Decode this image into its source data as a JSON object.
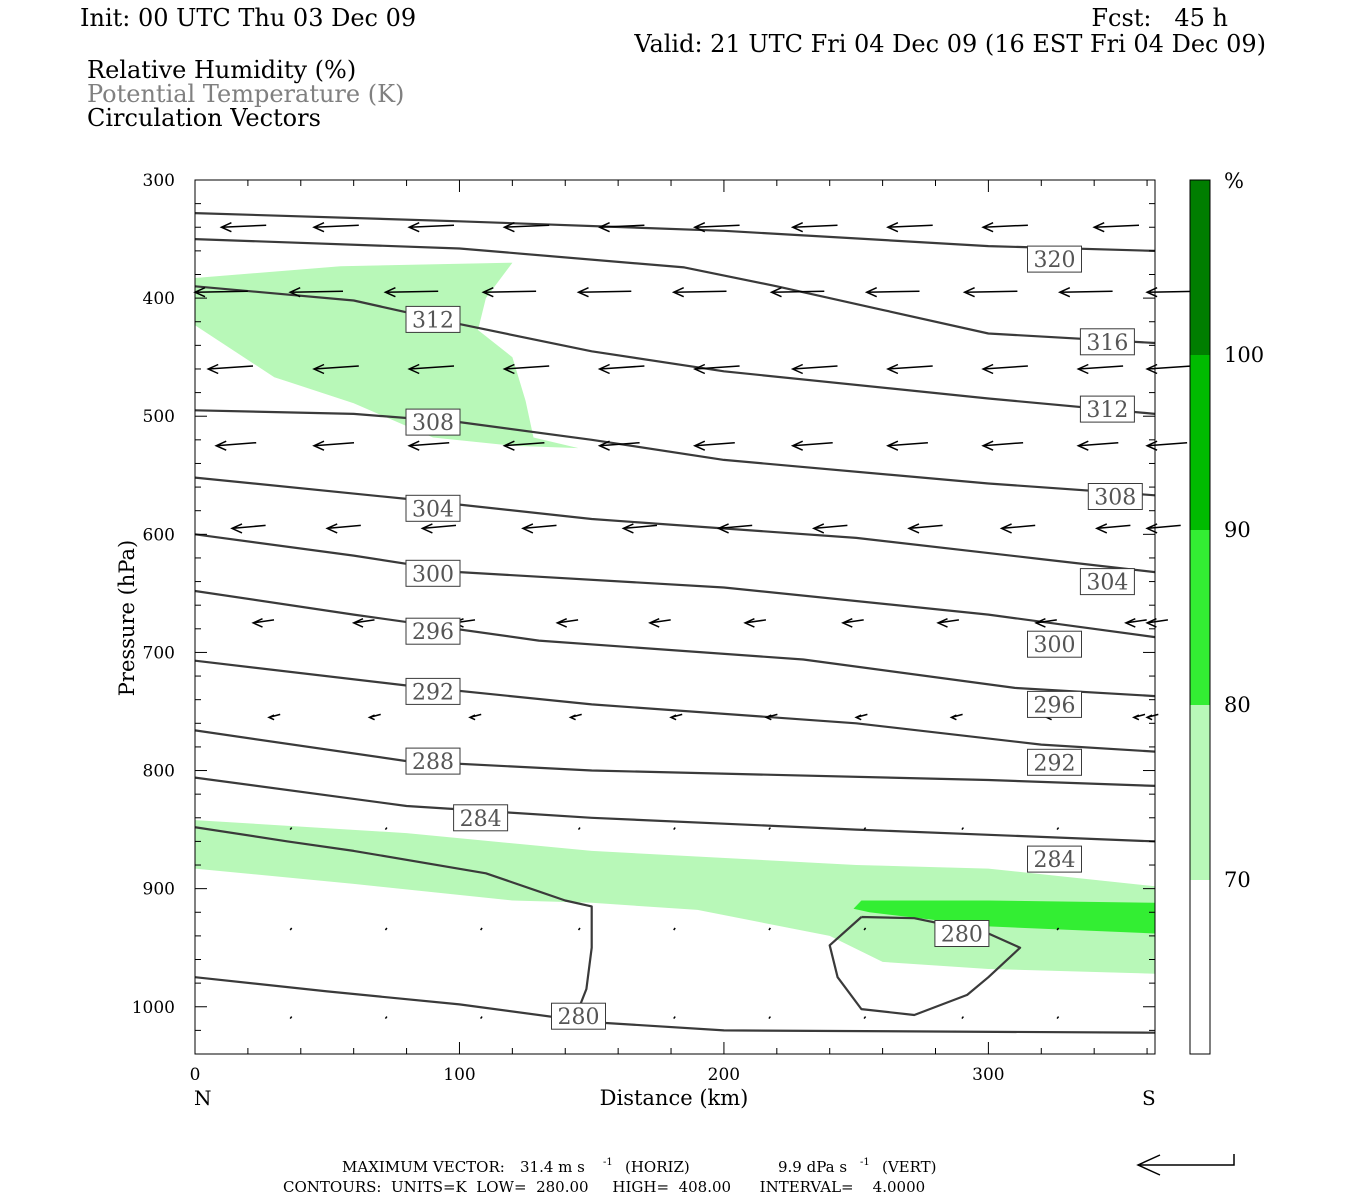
{
  "header": {
    "init": "Init: 00 UTC Thu 03 Dec 09",
    "fcst": "Fcst:   45 h",
    "valid": "Valid: 21 UTC Fri 04 Dec 09 (16 EST Fri 04 Dec 09)"
  },
  "legend": {
    "rh": "Relative Humidity (%)",
    "theta": "Potential Temperature (K)",
    "vectors": "Circulation Vectors"
  },
  "colors": {
    "theta_line": "#3a3a3a",
    "theta_label_text": "#555555",
    "rh_70_80": "#b8f8b8",
    "rh_80_90": "#33ee33",
    "rh_90_100": "#00bb00",
    "rh_100": "#007e00"
  },
  "footer": {
    "max_vector_label": "MAXIMUM VECTOR:",
    "max_vector_horiz": "31.4 m s",
    "horiz_tag": "(HORIZ)",
    "max_vector_vert": "9.9 dPa s",
    "vert_tag": "(VERT)",
    "exponent": "-1",
    "contours": "CONTOURS:  UNITS=K  LOW=  280.00     HIGH=  408.00      INTERVAL=    4.0000"
  },
  "chart_data": {
    "type": "cross-section",
    "xlabel": "Distance (km)",
    "ylabel": "Pressure (hPa)",
    "xlim": [
      0,
      363
    ],
    "ylim": [
      1040,
      300
    ],
    "x_ticks": [
      0,
      100,
      200,
      300
    ],
    "y_ticks": [
      300,
      400,
      500,
      600,
      700,
      800,
      900,
      1000
    ],
    "x_end_labels": {
      "left": "N",
      "right": "S"
    },
    "colorbar": {
      "unit": "%",
      "levels": [
        70,
        80,
        90,
        100
      ]
    },
    "theta_contours": [
      {
        "level": 320,
        "points": [
          [
            0,
            328
          ],
          [
            100,
            335
          ],
          [
            200,
            343
          ],
          [
            300,
            356
          ],
          [
            363,
            360
          ]
        ],
        "labels": [
          {
            "x": 325,
            "p": 367,
            "text": "320"
          }
        ]
      },
      {
        "level": 316,
        "points": [
          [
            0,
            350
          ],
          [
            100,
            358
          ],
          [
            185,
            374
          ],
          [
            220,
            390
          ],
          [
            260,
            410
          ],
          [
            300,
            430
          ],
          [
            363,
            438
          ]
        ],
        "labels": [
          {
            "x": 345,
            "p": 437,
            "text": "316"
          }
        ]
      },
      {
        "level": 312,
        "points": [
          [
            0,
            390
          ],
          [
            60,
            402
          ],
          [
            100,
            422
          ],
          [
            150,
            445
          ],
          [
            200,
            462
          ],
          [
            300,
            485
          ],
          [
            363,
            498
          ]
        ],
        "labels": [
          {
            "x": 90,
            "p": 418,
            "text": "312"
          },
          {
            "x": 345,
            "p": 494,
            "text": "312"
          }
        ]
      },
      {
        "level": 308,
        "points": [
          [
            0,
            495
          ],
          [
            60,
            498
          ],
          [
            100,
            505
          ],
          [
            150,
            520
          ],
          [
            200,
            537
          ],
          [
            300,
            557
          ],
          [
            363,
            567
          ]
        ],
        "labels": [
          {
            "x": 90,
            "p": 505,
            "text": "308"
          },
          {
            "x": 348,
            "p": 568,
            "text": "308"
          }
        ]
      },
      {
        "level": 304,
        "points": [
          [
            0,
            552
          ],
          [
            80,
            570
          ],
          [
            150,
            587
          ],
          [
            250,
            603
          ],
          [
            320,
            621
          ],
          [
            363,
            632
          ]
        ],
        "labels": [
          {
            "x": 90,
            "p": 578,
            "text": "304"
          },
          {
            "x": 345,
            "p": 640,
            "text": "304"
          }
        ]
      },
      {
        "level": 300,
        "points": [
          [
            0,
            600
          ],
          [
            60,
            618
          ],
          [
            100,
            632
          ],
          [
            200,
            645
          ],
          [
            300,
            668
          ],
          [
            363,
            687
          ]
        ],
        "labels": [
          {
            "x": 90,
            "p": 633,
            "text": "300"
          },
          {
            "x": 325,
            "p": 693,
            "text": "300"
          }
        ]
      },
      {
        "level": 296,
        "points": [
          [
            0,
            648
          ],
          [
            60,
            668
          ],
          [
            130,
            690
          ],
          [
            230,
            706
          ],
          [
            310,
            730
          ],
          [
            363,
            737
          ]
        ],
        "labels": [
          {
            "x": 90,
            "p": 682,
            "text": "296"
          },
          {
            "x": 325,
            "p": 744,
            "text": "296"
          }
        ]
      },
      {
        "level": 292,
        "points": [
          [
            0,
            707
          ],
          [
            80,
            728
          ],
          [
            150,
            744
          ],
          [
            250,
            760
          ],
          [
            320,
            778
          ],
          [
            363,
            784
          ]
        ],
        "labels": [
          {
            "x": 90,
            "p": 733,
            "text": "292"
          },
          {
            "x": 325,
            "p": 793,
            "text": "292"
          }
        ]
      },
      {
        "level": 288,
        "points": [
          [
            0,
            766
          ],
          [
            80,
            792
          ],
          [
            150,
            800
          ],
          [
            300,
            808
          ],
          [
            363,
            813
          ]
        ],
        "labels": [
          {
            "x": 90,
            "p": 792,
            "text": "288"
          }
        ]
      },
      {
        "level": 284,
        "points": [
          [
            0,
            806
          ],
          [
            80,
            830
          ],
          [
            150,
            840
          ],
          [
            250,
            850
          ],
          [
            363,
            860
          ]
        ],
        "labels": [
          {
            "x": 108,
            "p": 840,
            "text": "284"
          },
          {
            "x": 325,
            "p": 875,
            "text": "284"
          }
        ]
      },
      {
        "level": 280,
        "points": [
          [
            0,
            848
          ],
          [
            35,
            860
          ],
          [
            60,
            868
          ],
          [
            110,
            887
          ],
          [
            140,
            910
          ],
          [
            150,
            915
          ],
          [
            150,
            950
          ],
          [
            148,
            985
          ],
          [
            145,
            1002
          ]
        ],
        "labels": []
      },
      {
        "level": 280,
        "points": [
          [
            0,
            975
          ],
          [
            50,
            987
          ],
          [
            100,
            998
          ],
          [
            150,
            1013
          ],
          [
            200,
            1020
          ],
          [
            363,
            1022
          ]
        ],
        "labels": [
          {
            "x": 145,
            "p": 1008,
            "text": "280"
          }
        ]
      },
      {
        "level": 280,
        "points": [
          [
            252,
            924
          ],
          [
            272,
            925
          ],
          [
            300,
            938
          ],
          [
            312,
            950
          ],
          [
            300,
            975
          ],
          [
            292,
            990
          ],
          [
            272,
            1007
          ],
          [
            252,
            1002
          ],
          [
            243,
            975
          ],
          [
            240,
            948
          ],
          [
            252,
            924
          ]
        ],
        "labels": [
          {
            "x": 290,
            "p": 938,
            "text": "280"
          }
        ]
      }
    ],
    "rh_areas": [
      {
        "range": "70-80",
        "points": [
          [
            0,
            383
          ],
          [
            55,
            373
          ],
          [
            120,
            370
          ],
          [
            110,
            400
          ],
          [
            107,
            427
          ],
          [
            120,
            450
          ],
          [
            125,
            487
          ],
          [
            128,
            518
          ],
          [
            145,
            527
          ],
          [
            120,
            525
          ],
          [
            90,
            518
          ],
          [
            60,
            489
          ],
          [
            30,
            467
          ],
          [
            0,
            423
          ]
        ]
      },
      {
        "range": "70-80",
        "points": [
          [
            0,
            842
          ],
          [
            80,
            853
          ],
          [
            150,
            868
          ],
          [
            250,
            880
          ],
          [
            300,
            883
          ],
          [
            363,
            898
          ],
          [
            363,
            972
          ],
          [
            300,
            968
          ],
          [
            260,
            962
          ],
          [
            240,
            940
          ],
          [
            190,
            918
          ],
          [
            150,
            912
          ],
          [
            120,
            910
          ],
          [
            60,
            896
          ],
          [
            0,
            883
          ]
        ]
      },
      {
        "range": "80-90",
        "points": [
          [
            252,
            910
          ],
          [
            300,
            910
          ],
          [
            363,
            912
          ],
          [
            363,
            938
          ],
          [
            300,
            932
          ],
          [
            255,
            920
          ],
          [
            249,
            917
          ]
        ]
      }
    ]
  }
}
